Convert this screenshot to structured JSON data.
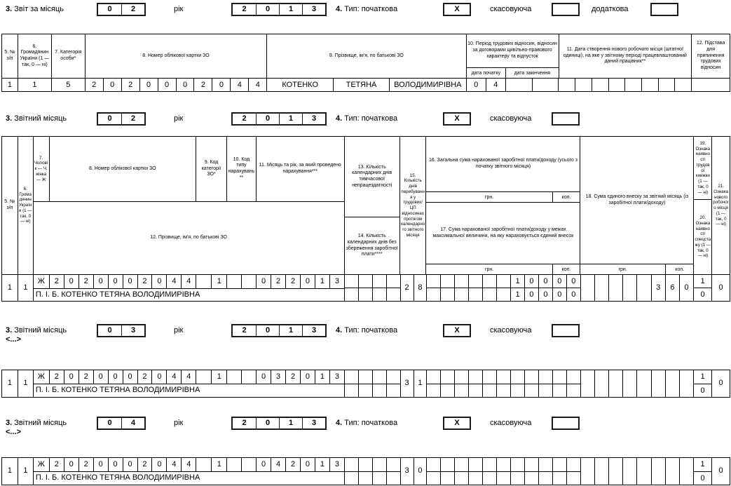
{
  "report_header": {
    "num": "3.",
    "label": "Звіт за місяць",
    "month_cells": [
      "0",
      "2"
    ],
    "year_label": "рік",
    "year_cells": [
      "2",
      "0",
      "1",
      "3"
    ],
    "type_num": "4.",
    "type_label": "Тип: початкова",
    "initial_cells": [
      "X"
    ],
    "cancel_label": "скасовуюча",
    "cancel_cells": [
      ""
    ],
    "additional_label": "додаткова",
    "additional_cells": [
      ""
    ]
  },
  "table1": {
    "headers": {
      "c5": "5. № з/п",
      "c6": "6. Громадянин України (1 — так, 0 — ні)",
      "c7": "7. Категорія особи*",
      "c8": "8. Номер облікової картки ЗО",
      "c9": "9. Прізвище, ім'я, по батькові ЗО",
      "c10": "10. Період трудових відносин, відносин за договорами цивільно-правового характеру та відпусток",
      "c10_start": "дата початку",
      "c10_end": "дата закінчення",
      "c11": "11. Дата створення нового робочого місця (штатної одиниці), на яке у звітному періоді працевлаштований даний працівник**",
      "c12": "12. Підстава для припинення трудових відносин"
    },
    "row": {
      "num": "1",
      "citizen": "1",
      "category": "5",
      "card_cells": [
        "2",
        "0",
        "2",
        "0",
        "0",
        "0",
        "2",
        "0",
        "4",
        "4"
      ],
      "surname": "КОТЕНКО",
      "name": "ТЕТЯНА",
      "patronymic": "ВОЛОДИМИРІВНА",
      "start_cells": [
        "0",
        "4"
      ],
      "end_cells": [
        "",
        ""
      ],
      "workplace_cells": [
        "",
        "",
        "",
        "",
        "",
        "",
        "",
        ""
      ],
      "termination": ""
    }
  },
  "table2_headers": {
    "c5": "5. № з/п",
    "c6": "6. Громадянин України (1 — так, 0 — ні)",
    "c7": "7. Чоловік — Ч, жінка — Ж",
    "c8": "8. Номер облікової картки ЗО",
    "c9": "9. Код категорії ЗО*",
    "c10": "10. Код типу нарахувань**",
    "c11": "11. Місяць та рік, за який проведено нарахування***",
    "c12": "12. Прізвище, ім'я, по батькові ЗО",
    "c13": "13. Кількість календарних днів тимчасової непрацездатності",
    "c14": "14. Кількість календарних днів без збереження заробітної плати****",
    "c15": "15. Кількість днів перебування у трудових/ЦП відносинах протягом календарного звітного місяця",
    "c16": "16. Загальна сума нарахованої заробітної плати/доходу (усього з початку звітного місяця)",
    "c17": "17. Сума нарахованої заробітної плати/доходу у межах максимальної величини, на яку нараховується єдиний внесок",
    "c18": "18. Сума єдиного внеску за звітний місяць (із заробітної плати/доходу)",
    "c19": "19. Ознака наявності трудової книжки (1 — так, 0 — ні)",
    "c20": "20. Ознака наявності спецстажу (1 — так, 0 — ні)",
    "c21": "21. Ознака нового робочого місця (1 — так, 0 — ні)",
    "hrn": "грн.",
    "kop": "коп."
  },
  "monthly_sections": [
    {
      "num": "3.",
      "label": "Звітний місяць",
      "month_cells": [
        "0",
        "2"
      ],
      "year_label": "рік",
      "year_cells": [
        "2",
        "0",
        "1",
        "3"
      ],
      "type_num": "4.",
      "type_label": "Тип: початкова",
      "initial_cells": [
        "X"
      ],
      "cancel_label": "скасовуюча",
      "cancel_cells": [
        ""
      ],
      "ellipsis": "",
      "row": {
        "num": "1",
        "citizen": "1",
        "sex": "Ж",
        "card_cells": [
          "2",
          "0",
          "2",
          "0",
          "0",
          "0",
          "2",
          "0",
          "4",
          "4"
        ],
        "category_cells": [
          "",
          "1"
        ],
        "accrual_cells": [
          "",
          ""
        ],
        "period_cells": [
          "0",
          "2",
          "2",
          "0",
          "1",
          "3"
        ],
        "pib": "П. І. Б. КОТЕНКО ТЕТЯНА ВОЛОДИМИРІВНА",
        "sick_cells": [
          "",
          "",
          "",
          ""
        ],
        "unpaid_cells": [
          "",
          "",
          "",
          ""
        ],
        "days_cells": [
          "2",
          "8"
        ],
        "total_cells": [
          "",
          "",
          "",
          "",
          "",
          "",
          "1",
          "0",
          "0",
          "0",
          "0"
        ],
        "capped_cells": [
          "",
          "",
          "",
          "",
          "",
          "",
          "1",
          "0",
          "0",
          "0",
          "0"
        ],
        "esv_cells": [
          "",
          "",
          "",
          "",
          "",
          "3",
          "6",
          "0"
        ],
        "labor_book": "1",
        "special_exp": "0",
        "new_workplace": "0"
      }
    },
    {
      "num": "3.",
      "label": "Звітний місяць",
      "month_cells": [
        "0",
        "3"
      ],
      "year_label": "рік",
      "year_cells": [
        "2",
        "0",
        "1",
        "3"
      ],
      "type_num": "4.",
      "type_label": "Тип: початкова",
      "initial_cells": [
        "X"
      ],
      "cancel_label": "скасовуюча",
      "cancel_cells": [
        ""
      ],
      "ellipsis": "<...>",
      "row": {
        "num": "1",
        "citizen": "1",
        "sex": "Ж",
        "card_cells": [
          "2",
          "0",
          "2",
          "0",
          "0",
          "0",
          "2",
          "0",
          "4",
          "4"
        ],
        "category_cells": [
          "",
          "1"
        ],
        "accrual_cells": [
          "",
          ""
        ],
        "period_cells": [
          "0",
          "3",
          "2",
          "0",
          "1",
          "3"
        ],
        "pib": "П. І. Б. КОТЕНКО ТЕТЯНА ВОЛОДИМИРІВНА",
        "sick_cells": [
          "",
          "",
          "",
          ""
        ],
        "unpaid_cells": [
          "",
          "",
          "",
          ""
        ],
        "days_cells": [
          "3",
          "1"
        ],
        "total_cells": [
          "",
          "",
          "",
          "",
          "",
          "",
          "",
          "",
          "",
          "",
          ""
        ],
        "capped_cells": [
          "",
          "",
          "",
          "",
          "",
          "",
          "",
          "",
          "",
          "",
          ""
        ],
        "esv_cells": [
          "",
          "",
          "",
          "",
          "",
          "",
          "",
          ""
        ],
        "labor_book": "1",
        "special_exp": "0",
        "new_workplace": "0"
      }
    },
    {
      "num": "3.",
      "label": "Звітний місяць",
      "month_cells": [
        "0",
        "4"
      ],
      "year_label": "рік",
      "year_cells": [
        "2",
        "0",
        "1",
        "3"
      ],
      "type_num": "4.",
      "type_label": "Тип: початкова",
      "initial_cells": [
        "X"
      ],
      "cancel_label": "скасовуюча",
      "cancel_cells": [
        ""
      ],
      "ellipsis": "<...>",
      "row": {
        "num": "1",
        "citizen": "1",
        "sex": "Ж",
        "card_cells": [
          "2",
          "0",
          "2",
          "0",
          "0",
          "0",
          "2",
          "0",
          "4",
          "4"
        ],
        "category_cells": [
          "",
          "1"
        ],
        "accrual_cells": [
          "",
          ""
        ],
        "period_cells": [
          "0",
          "4",
          "2",
          "0",
          "1",
          "3"
        ],
        "pib": "П. І. Б. КОТЕНКО ТЕТЯНА ВОЛОДИМИРІВНА",
        "sick_cells": [
          "",
          "",
          "",
          ""
        ],
        "unpaid_cells": [
          "",
          "",
          "",
          ""
        ],
        "days_cells": [
          "3",
          "0"
        ],
        "total_cells": [
          "",
          "",
          "",
          "",
          "",
          "",
          "",
          "",
          "",
          "",
          ""
        ],
        "capped_cells": [
          "",
          "",
          "",
          "",
          "",
          "",
          "",
          "",
          "",
          "",
          ""
        ],
        "esv_cells": [
          "",
          "",
          "",
          "",
          "",
          "",
          "",
          ""
        ],
        "labor_book": "1",
        "special_exp": "0",
        "new_workplace": "0"
      }
    }
  ]
}
